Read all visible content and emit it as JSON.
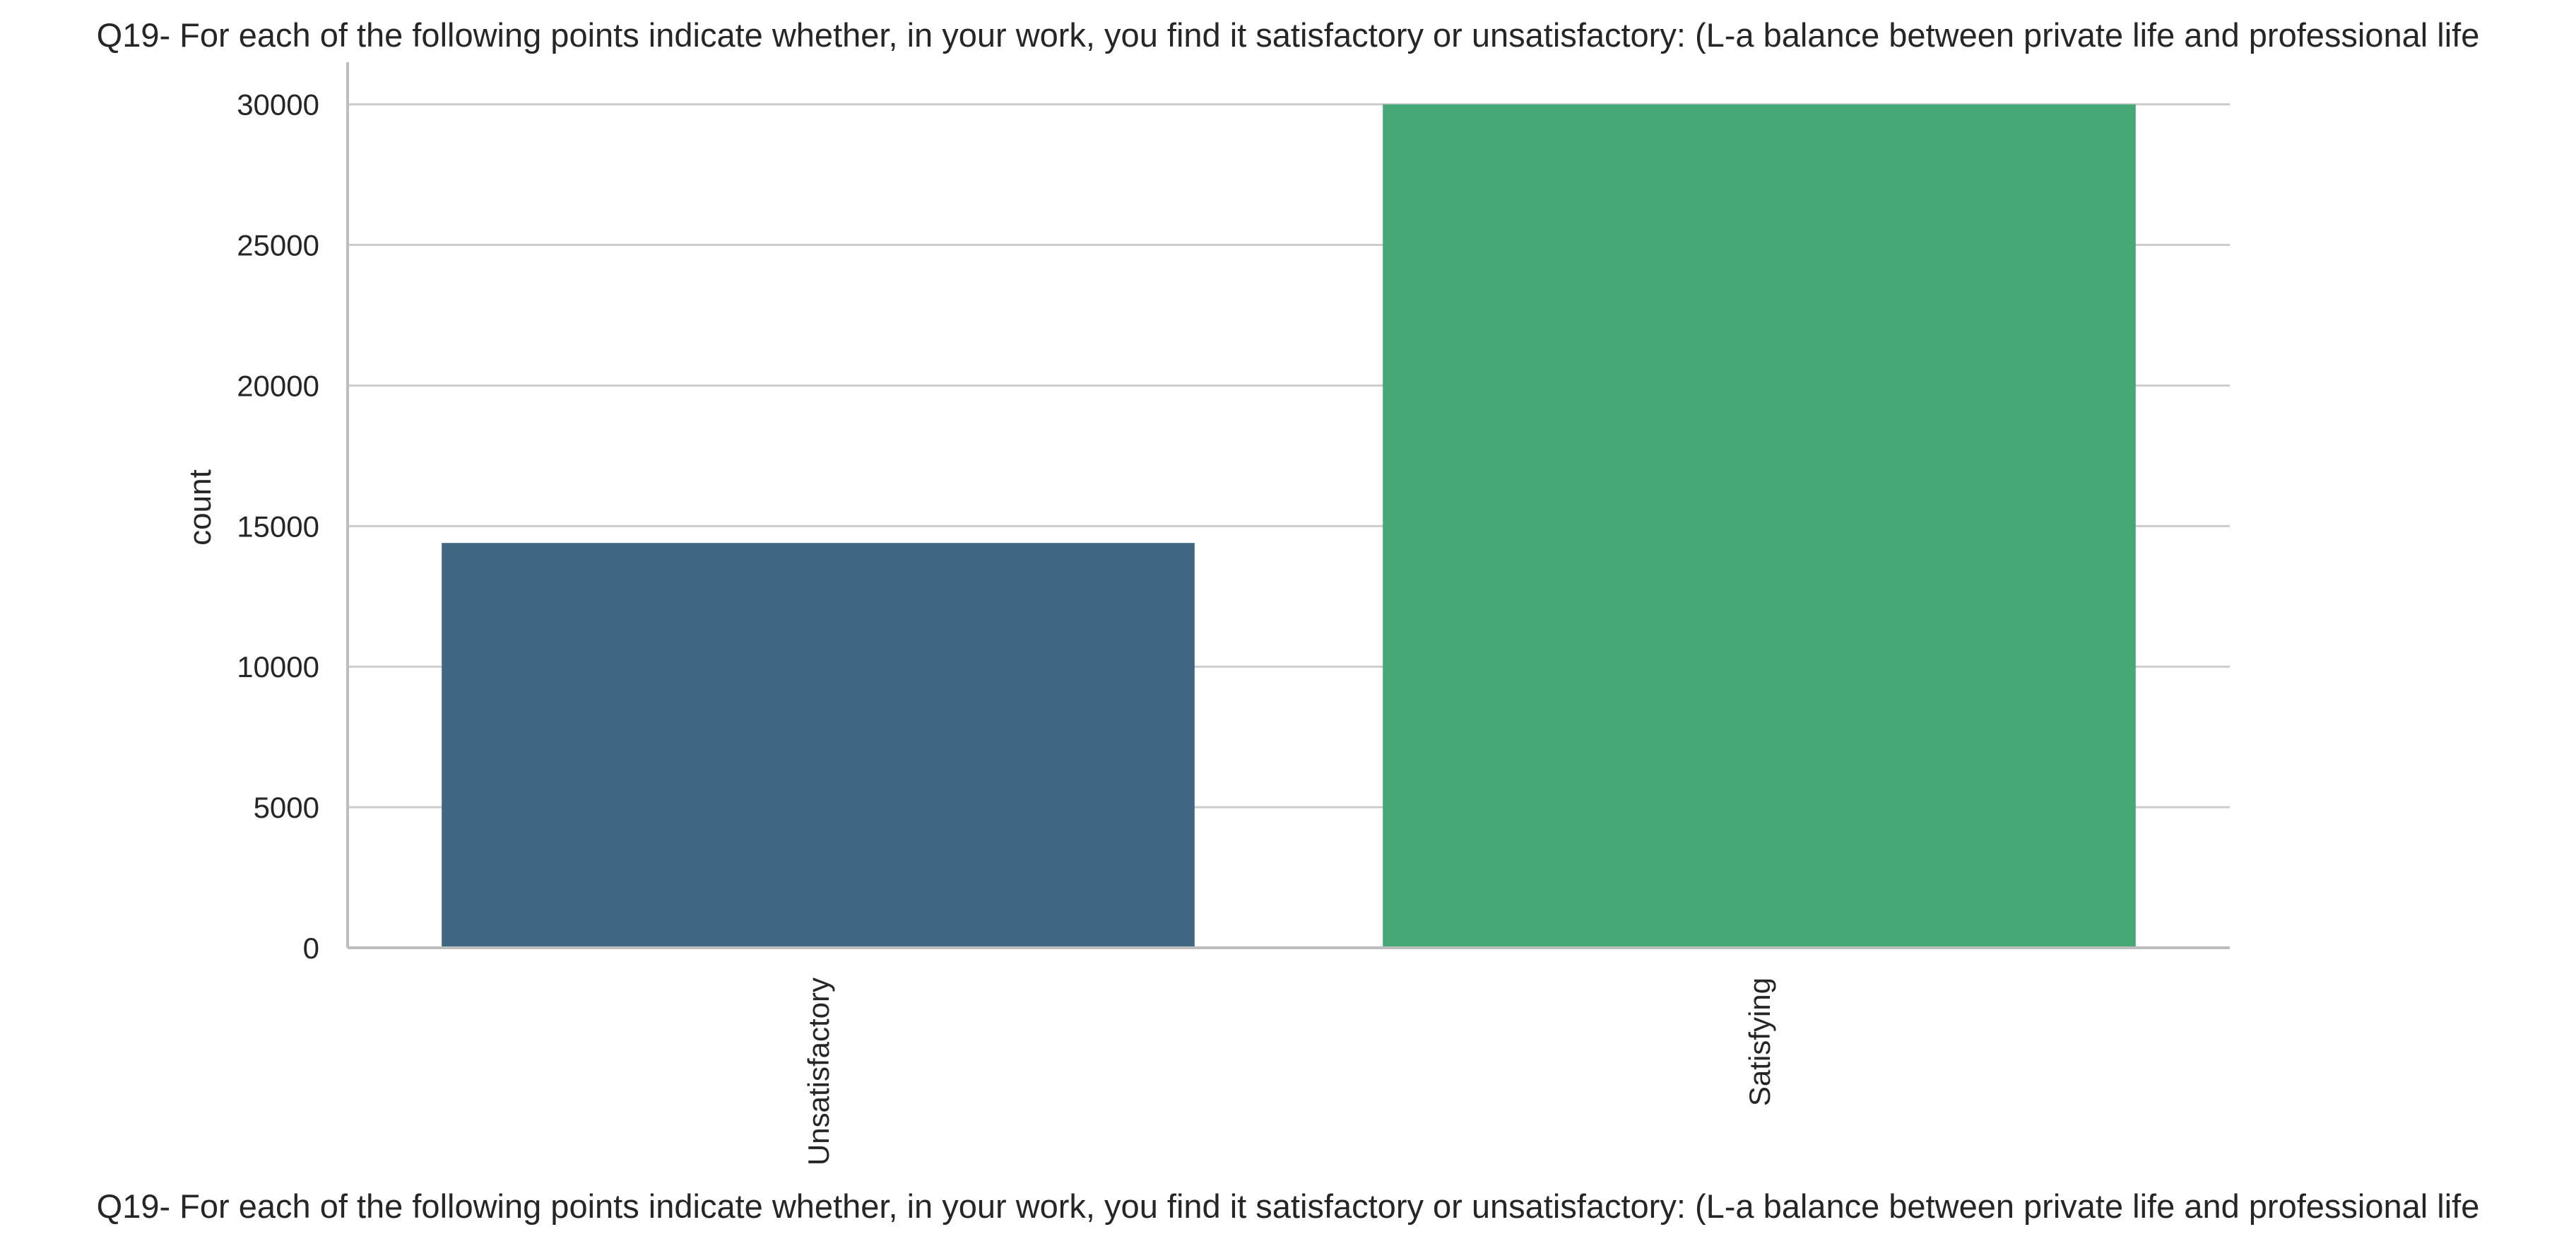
{
  "chart_data": {
    "type": "bar",
    "title": "Q19- For each of the following points indicate whether, in your work, you find it satisfactory or unsatisfactory: (L-a balance between private life and professional life",
    "xlabel": "Q19- For each of the following points indicate whether, in your work, you find it satisfactory or unsatisfactory: (L-a balance between private life and professional life",
    "ylabel": "count",
    "categories": [
      "Unsatisfactory",
      "Satisfying"
    ],
    "values": [
      14400,
      30000
    ],
    "ylim": [
      0,
      31500
    ],
    "yticks": [
      0,
      5000,
      10000,
      15000,
      20000,
      25000,
      30000
    ],
    "colors": [
      "#3f6783",
      "#46a877"
    ],
    "grid": "horizontal",
    "gridColor": "#cccccc",
    "axisColor": "#bdbdbd"
  }
}
